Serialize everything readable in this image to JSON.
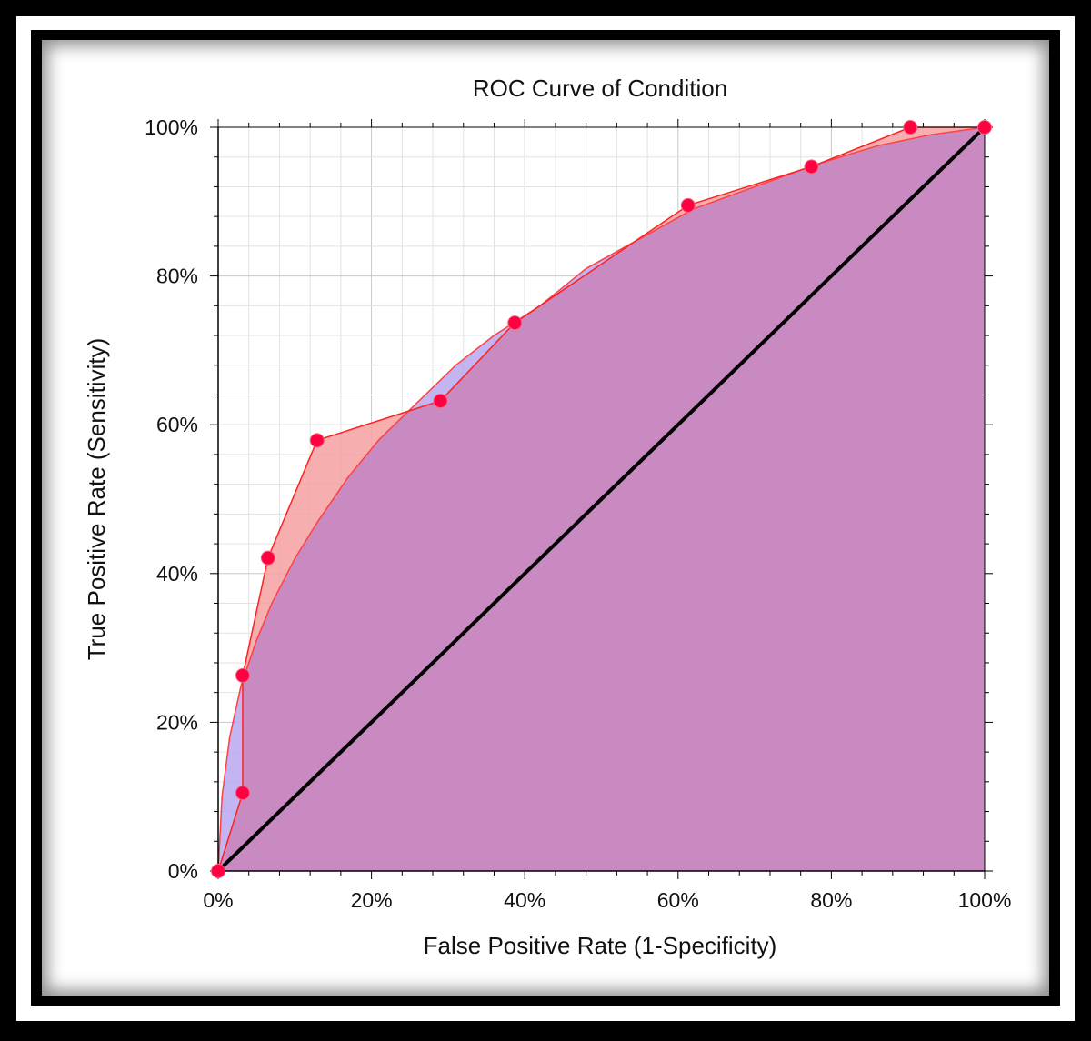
{
  "chart_data": {
    "type": "area",
    "title": "ROC Curve of Condition",
    "xlabel": "False Positive Rate (1-Specificity)",
    "ylabel": "True Positive Rate (Sensitivity)",
    "xlim": [
      0,
      100
    ],
    "ylim": [
      0,
      100
    ],
    "x_ticks": [
      "0%",
      "20%",
      "40%",
      "60%",
      "80%",
      "100%"
    ],
    "y_ticks": [
      "0%",
      "20%",
      "40%",
      "60%",
      "80%",
      "100%"
    ],
    "grid": true,
    "series": [
      {
        "kind": "empirical",
        "color": "#ff2020",
        "fill": "#f4a0a0",
        "marker_color": "#ff0040",
        "points": [
          [
            0,
            0
          ],
          [
            3.2,
            10.5
          ],
          [
            3.2,
            26.3
          ],
          [
            6.5,
            42.1
          ],
          [
            12.9,
            57.9
          ],
          [
            29.0,
            63.2
          ],
          [
            38.7,
            73.7
          ],
          [
            61.3,
            89.5
          ],
          [
            77.4,
            94.7
          ],
          [
            90.3,
            100
          ],
          [
            100,
            100
          ]
        ]
      },
      {
        "kind": "fitted",
        "color": "#ff4040",
        "fill": "#b8a8f0",
        "points": [
          [
            0,
            0
          ],
          [
            0.5,
            10
          ],
          [
            1.5,
            18
          ],
          [
            3,
            25
          ],
          [
            5,
            31
          ],
          [
            7,
            36
          ],
          [
            10,
            42
          ],
          [
            13,
            47
          ],
          [
            17,
            53
          ],
          [
            21,
            58
          ],
          [
            26,
            63
          ],
          [
            31,
            68
          ],
          [
            36,
            72
          ],
          [
            42,
            76
          ],
          [
            48,
            81
          ],
          [
            55,
            85
          ],
          [
            62,
            89
          ],
          [
            70,
            92
          ],
          [
            78,
            95
          ],
          [
            86,
            97.5
          ],
          [
            93,
            99
          ],
          [
            100,
            100
          ]
        ]
      },
      {
        "kind": "chance",
        "color": "#000000",
        "points": [
          [
            0,
            0
          ],
          [
            100,
            100
          ]
        ]
      }
    ],
    "overlap_fill": "#c88ac0"
  }
}
